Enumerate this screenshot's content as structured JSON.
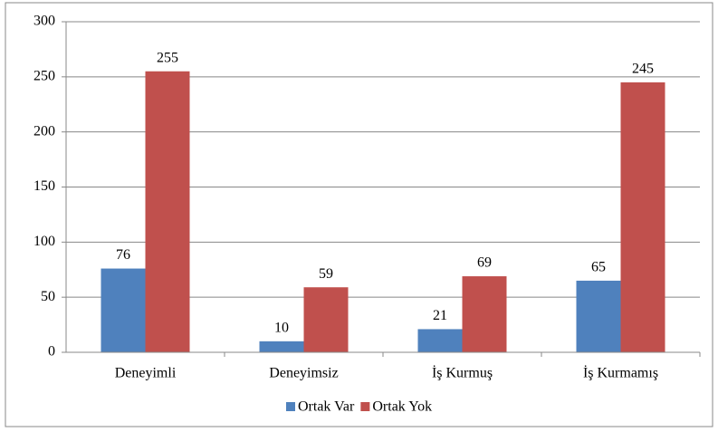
{
  "chart_data": {
    "type": "bar",
    "categories": [
      "Deneyimli",
      "Deneyimsiz",
      "İş Kurmuş",
      "İş Kurmamış"
    ],
    "series": [
      {
        "name": "Ortak Var",
        "color": "#4f81bd",
        "values": [
          76,
          10,
          21,
          65
        ]
      },
      {
        "name": "Ortak Yok",
        "color": "#c0504d",
        "values": [
          255,
          59,
          69,
          245
        ]
      }
    ],
    "ylim": [
      0,
      300
    ],
    "yticks": [
      0,
      50,
      100,
      150,
      200,
      250,
      300
    ],
    "grid": true,
    "legend": "bottom"
  }
}
